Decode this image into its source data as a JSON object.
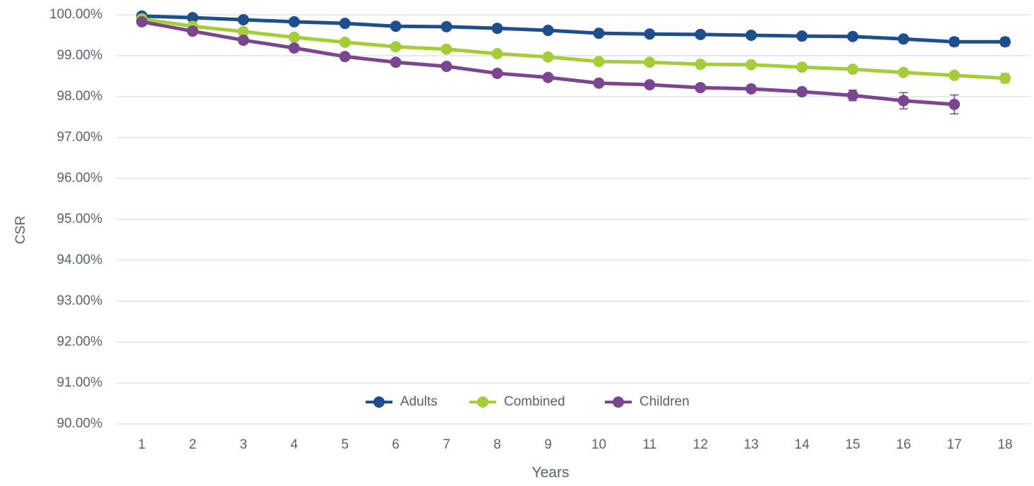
{
  "chart_data": {
    "type": "line",
    "x_label": "Years",
    "y_label": "CSR",
    "x": [
      1,
      2,
      3,
      4,
      5,
      6,
      7,
      8,
      9,
      10,
      11,
      12,
      13,
      14,
      15,
      16,
      17,
      18
    ],
    "xlim": [
      0.5,
      18.5
    ],
    "xticks": [
      1,
      2,
      3,
      4,
      5,
      6,
      7,
      8,
      9,
      10,
      11,
      12,
      13,
      14,
      15,
      16,
      17,
      18
    ],
    "ylim": [
      90,
      100
    ],
    "yticks": [
      {
        "value": 90,
        "label": "90.00%"
      },
      {
        "value": 91,
        "label": "91.00%"
      },
      {
        "value": 92,
        "label": "92.00%"
      },
      {
        "value": 93,
        "label": "93.00%"
      },
      {
        "value": 94,
        "label": "94.00%"
      },
      {
        "value": 95,
        "label": "95.00%"
      },
      {
        "value": 96,
        "label": "96.00%"
      },
      {
        "value": 97,
        "label": "97.00%"
      },
      {
        "value": 98,
        "label": "98.00%"
      },
      {
        "value": 99,
        "label": "99.00%"
      },
      {
        "value": 100,
        "label": "100.00%"
      }
    ],
    "grid": true,
    "legend": "bottom",
    "series": [
      {
        "name": "Adults",
        "color": "#1f4e8c",
        "values": [
          99.97,
          99.93,
          99.88,
          99.83,
          99.79,
          99.72,
          99.71,
          99.67,
          99.62,
          99.55,
          99.53,
          99.52,
          99.5,
          99.48,
          99.47,
          99.41,
          99.34,
          99.34
        ],
        "errors": [
          0.01,
          0.01,
          0.01,
          0.01,
          0.01,
          0.02,
          0.02,
          0.02,
          0.02,
          0.03,
          0.03,
          0.03,
          0.03,
          0.04,
          0.05,
          0.06,
          0.1,
          0.1
        ]
      },
      {
        "name": "Combined",
        "color": "#a5cd39",
        "values": [
          99.9,
          99.72,
          99.59,
          99.45,
          99.33,
          99.22,
          99.16,
          99.05,
          98.97,
          98.86,
          98.84,
          98.79,
          98.78,
          98.72,
          98.67,
          98.59,
          98.52,
          98.45
        ],
        "errors": [
          0.01,
          0.01,
          0.01,
          0.01,
          0.02,
          0.02,
          0.02,
          0.02,
          0.03,
          0.03,
          0.03,
          0.04,
          0.04,
          0.04,
          0.05,
          0.06,
          0.08,
          0.12
        ]
      },
      {
        "name": "Children",
        "color": "#7b4590",
        "values": [
          99.83,
          99.6,
          99.38,
          99.19,
          98.98,
          98.84,
          98.74,
          98.57,
          98.47,
          98.33,
          98.29,
          98.22,
          98.19,
          98.12,
          98.03,
          97.9,
          97.81,
          null
        ],
        "errors": [
          0.01,
          0.02,
          0.02,
          0.03,
          0.03,
          0.03,
          0.04,
          0.04,
          0.05,
          0.05,
          0.06,
          0.07,
          0.08,
          0.09,
          0.13,
          0.2,
          0.23,
          null
        ]
      }
    ]
  }
}
